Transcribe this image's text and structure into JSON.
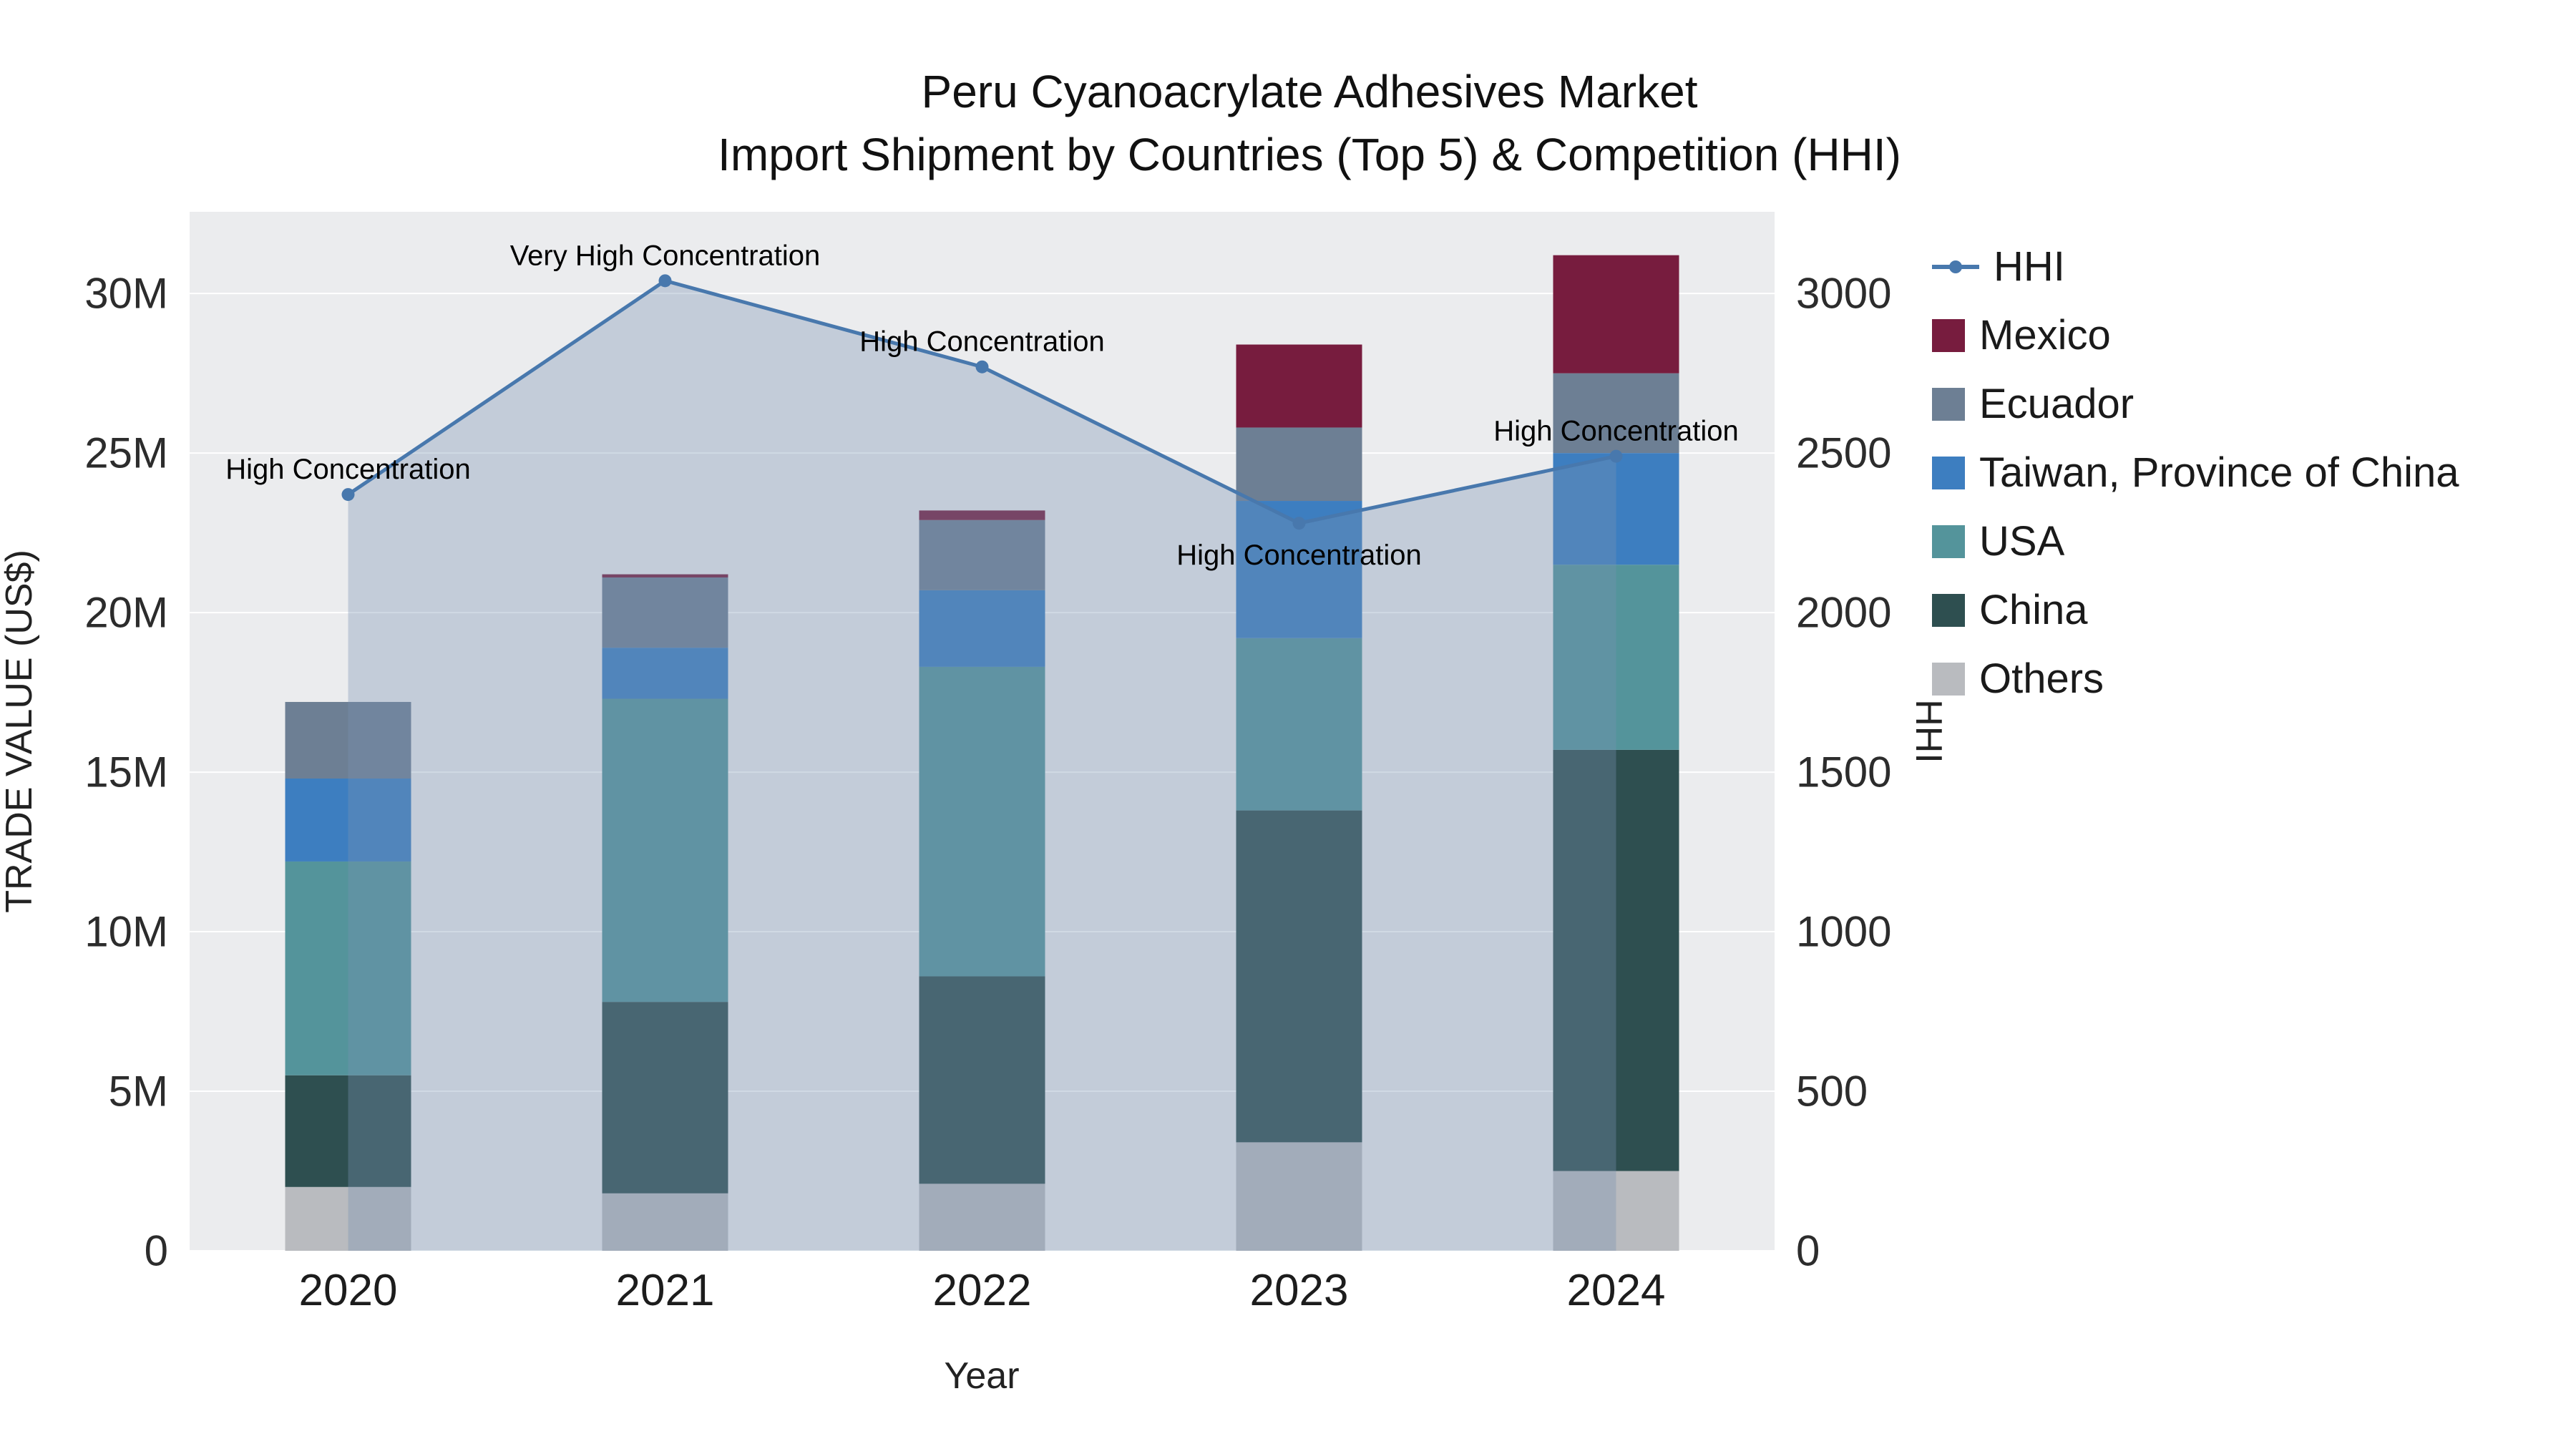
{
  "title": {
    "line1": "Peru Cyanoacrylate Adhesives Market",
    "line2": "Import Shipment by Countries (Top 5) & Competition (HHI)"
  },
  "axes": {
    "left": {
      "title": "TRADE VALUE (US$)"
    },
    "right": {
      "title": "HHI"
    },
    "x": {
      "title": "Year"
    }
  },
  "colors": {
    "plot_bg": "#ebecee",
    "grid": "#ffffff",
    "hhi_line": "#4878ad",
    "hhi_fill": "rgba(120,146,178,0.35)"
  },
  "chart_data": {
    "type": "bar",
    "subtype": "stacked-bars-with-hhi-line-overlay",
    "title": "Peru Cyanoacrylate Adhesives Market Import Shipment by Countries (Top 5) & Competition (HHI)",
    "xlabel": "Year",
    "ylabel_left": "TRADE VALUE (US$)",
    "ylabel_right": "HHI",
    "categories": [
      "2020",
      "2021",
      "2022",
      "2023",
      "2024"
    ],
    "bar_unit": "USD millions",
    "series": [
      {
        "name": "Others",
        "color": "#b9bbbf",
        "values": [
          2.0,
          1.8,
          2.1,
          3.4,
          2.5
        ]
      },
      {
        "name": "China",
        "color": "#2e4f50",
        "values": [
          3.5,
          6.0,
          6.5,
          10.4,
          13.2
        ]
      },
      {
        "name": "USA",
        "color": "#54949b",
        "values": [
          6.7,
          9.5,
          9.7,
          5.4,
          5.8
        ]
      },
      {
        "name": "Taiwan, Province of China",
        "color": "#3d7ec0",
        "values": [
          2.6,
          1.6,
          2.4,
          4.3,
          3.5
        ]
      },
      {
        "name": "Ecuador",
        "color": "#6d7f94",
        "values": [
          2.4,
          2.2,
          2.2,
          2.3,
          2.5
        ]
      },
      {
        "name": "Mexico",
        "color": "#771c3e",
        "values": [
          0,
          0.1,
          0.3,
          2.6,
          3.7
        ]
      }
    ],
    "line_series": {
      "name": "HHI",
      "color": "#4878ad",
      "fill_color": "rgba(120,146,178,0.35)",
      "values": [
        2370,
        3040,
        2770,
        2280,
        2490
      ]
    },
    "annotations": [
      {
        "x": "2020",
        "text": "High Concentration",
        "placement": "above"
      },
      {
        "x": "2021",
        "text": "Very High Concentration",
        "placement": "above"
      },
      {
        "x": "2022",
        "text": "High Concentration",
        "placement": "above"
      },
      {
        "x": "2023",
        "text": "High Concentration",
        "placement": "below"
      },
      {
        "x": "2024",
        "text": "High Concentration",
        "placement": "above"
      }
    ],
    "ylim_left": [
      0,
      32560000
    ],
    "ylim_right": [
      0,
      3256
    ],
    "left_ticks": [
      "0",
      "5M",
      "10M",
      "15M",
      "20M",
      "25M",
      "30M"
    ],
    "right_ticks": [
      "0",
      "500",
      "1000",
      "1500",
      "2000",
      "2500",
      "3000"
    ],
    "legend_order": [
      "HHI",
      "Mexico",
      "Ecuador",
      "Taiwan, Province of China",
      "USA",
      "China",
      "Others"
    ],
    "legend_position": "right",
    "grid": true
  }
}
